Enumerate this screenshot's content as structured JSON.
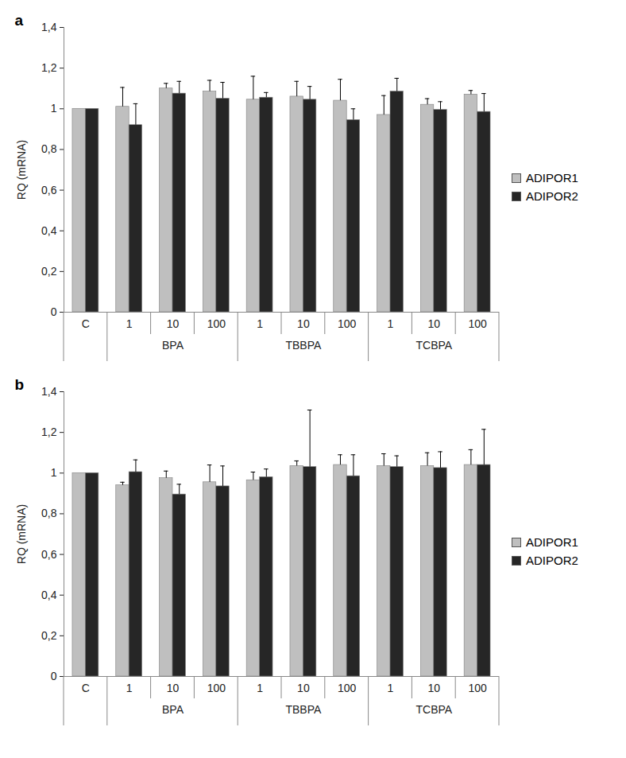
{
  "chart_data": [
    {
      "type": "bar",
      "title": "a",
      "y_label": "RQ (mRNA)",
      "categories": [
        "C",
        "1",
        "10",
        "100",
        "1",
        "10",
        "100",
        "1",
        "10",
        "100"
      ],
      "category_groups": [
        null,
        "BPA",
        "BPA",
        "BPA",
        "TBBPA",
        "TBBPA",
        "TBBPA",
        "TCBPA",
        "TCBPA",
        "TCBPA"
      ],
      "ylim": [
        0,
        1.4
      ],
      "yticks": [
        0,
        {
          "value": 0.2,
          "label": "0,2"
        },
        {
          "value": 0.4,
          "label": "0,4"
        },
        {
          "value": 0.6,
          "label": "0,6"
        },
        {
          "value": 0.8,
          "label": "0,8"
        },
        1,
        {
          "value": 1.2,
          "label": "1,2"
        },
        {
          "value": 1.4,
          "label": "1,4"
        }
      ],
      "grid": false,
      "legend": "right",
      "series": [
        {
          "name": "ADIPOR1",
          "color": "#bfbfbf",
          "values": [
            1,
            1.01,
            1.1,
            1.085,
            1.045,
            1.06,
            1.04,
            0.97,
            1.02,
            1.07
          ],
          "errors": [
            null,
            0.095,
            0.025,
            0.055,
            0.115,
            0.075,
            0.105,
            0.095,
            0.03,
            0.02
          ]
        },
        {
          "name": "ADIPOR2",
          "color": "#262626",
          "values": [
            1,
            0.92,
            1.075,
            1.05,
            1.055,
            1.045,
            0.945,
            1.085,
            0.995,
            0.985
          ],
          "errors": [
            null,
            0.105,
            0.06,
            0.08,
            0.025,
            0.065,
            0.055,
            0.065,
            0.04,
            0.09
          ]
        }
      ]
    },
    {
      "type": "bar",
      "title": "b",
      "y_label": "RQ (mRNA)",
      "categories": [
        "C",
        "1",
        "10",
        "100",
        "1",
        "10",
        "100",
        "1",
        "10",
        "100"
      ],
      "category_groups": [
        null,
        "BPA",
        "BPA",
        "BPA",
        "TBBPA",
        "TBBPA",
        "TBBPA",
        "TCBPA",
        "TCBPA",
        "TCBPA"
      ],
      "ylim": [
        0,
        1.4
      ],
      "yticks": [
        0,
        {
          "value": 0.2,
          "label": "0,2"
        },
        {
          "value": 0.4,
          "label": "0,4"
        },
        {
          "value": 0.6,
          "label": "0,6"
        },
        {
          "value": 0.8,
          "label": "0,8"
        },
        1,
        {
          "value": 1.2,
          "label": "1,2"
        },
        {
          "value": 1.4,
          "label": "1,4"
        }
      ],
      "grid": false,
      "legend": "right",
      "series": [
        {
          "name": "ADIPOR1",
          "color": "#bfbfbf",
          "values": [
            1,
            0.94,
            0.975,
            0.955,
            0.965,
            1.035,
            1.04,
            1.035,
            1.035,
            1.04
          ],
          "errors": [
            null,
            0.015,
            0.035,
            0.085,
            0.04,
            0.025,
            0.05,
            0.06,
            0.065,
            0.075
          ]
        },
        {
          "name": "ADIPOR2",
          "color": "#262626",
          "values": [
            1,
            1.005,
            0.895,
            0.935,
            0.98,
            1.03,
            0.985,
            1.03,
            1.025,
            1.04
          ],
          "errors": [
            null,
            0.06,
            0.05,
            0.1,
            0.04,
            0.28,
            0.105,
            0.055,
            0.08,
            0.175
          ]
        }
      ]
    }
  ]
}
